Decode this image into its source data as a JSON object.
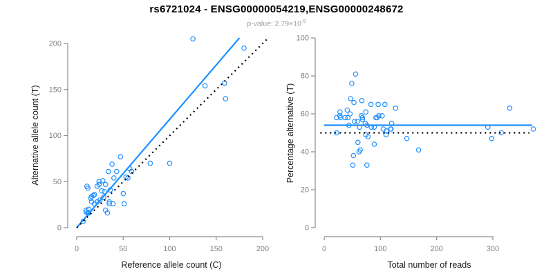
{
  "header": {
    "title": "rs6721024 - ENSG00000054219,ENSG00000248672",
    "pvalue_label": "p-value:",
    "pvalue_base": "2.79×10",
    "pvalue_exponent": "-9"
  },
  "colors": {
    "accent_blue": "#1E90FF",
    "line_black": "#000000",
    "axis_gray": "#8c8c8c",
    "tick_label_gray": "#808080",
    "subtitle_gray": "#999999",
    "title_black": "#000000"
  },
  "chart_data": [
    {
      "type": "scatter",
      "name": "allele-counts-panel",
      "xlabel": "Reference allele count (C)",
      "ylabel": "Alternative allele count (T)",
      "xticks": [
        0,
        50,
        100,
        150,
        200
      ],
      "yticks": [
        0,
        50,
        100,
        150,
        200
      ],
      "xlim": [
        0,
        205
      ],
      "ylim": [
        0,
        207
      ],
      "grid": false,
      "legend": "none",
      "points": [
        [
          7,
          7
        ],
        [
          10,
          17
        ],
        [
          10,
          19
        ],
        [
          11,
          45
        ],
        [
          12,
          16
        ],
        [
          12,
          43
        ],
        [
          13,
          16
        ],
        [
          13,
          20
        ],
        [
          15,
          32
        ],
        [
          16,
          28
        ],
        [
          16,
          34
        ],
        [
          18,
          35
        ],
        [
          19,
          26
        ],
        [
          19,
          36
        ],
        [
          22,
          28
        ],
        [
          22,
          45
        ],
        [
          24,
          47
        ],
        [
          24,
          50
        ],
        [
          25,
          30
        ],
        [
          27,
          40
        ],
        [
          28,
          51
        ],
        [
          29,
          33
        ],
        [
          30,
          39
        ],
        [
          31,
          19
        ],
        [
          31,
          47
        ],
        [
          33,
          16
        ],
        [
          34,
          61
        ],
        [
          35,
          26
        ],
        [
          35,
          28
        ],
        [
          36,
          41
        ],
        [
          38,
          69
        ],
        [
          39,
          26
        ],
        [
          40,
          54
        ],
        [
          43,
          61
        ],
        [
          47,
          77
        ],
        [
          50,
          37
        ],
        [
          51,
          26
        ],
        [
          53,
          55
        ],
        [
          55,
          54
        ],
        [
          57,
          64
        ],
        [
          59,
          61
        ],
        [
          79,
          70
        ],
        [
          100,
          70
        ],
        [
          125,
          205
        ],
        [
          138,
          154
        ],
        [
          159,
          157
        ],
        [
          160,
          140
        ],
        [
          180,
          195
        ]
      ],
      "lines": [
        {
          "name": "regression-line",
          "style": "solid",
          "color": "#1E90FF",
          "from": [
            0,
            0
          ],
          "to": [
            175,
            206
          ]
        },
        {
          "name": "identity-line",
          "style": "dotted",
          "color": "#000000",
          "from": [
            0,
            0
          ],
          "to": [
            206,
            206
          ]
        }
      ]
    },
    {
      "type": "scatter",
      "name": "percentage-panel",
      "xlabel": "Total number of reads",
      "ylabel": "Percentage alternative (T)",
      "xticks": [
        0,
        100,
        200,
        300
      ],
      "yticks": [
        0,
        20,
        40,
        60,
        80,
        100
      ],
      "xlim": [
        0,
        375
      ],
      "ylim": [
        0,
        100
      ],
      "grid": false,
      "legend": "none",
      "points": [
        [
          22,
          50
        ],
        [
          22,
          58
        ],
        [
          28,
          59
        ],
        [
          28,
          61
        ],
        [
          29,
          58
        ],
        [
          37,
          58
        ],
        [
          41,
          62
        ],
        [
          42,
          58
        ],
        [
          44,
          54
        ],
        [
          46,
          60
        ],
        [
          47,
          68
        ],
        [
          49,
          76
        ],
        [
          51,
          33
        ],
        [
          52,
          38
        ],
        [
          53,
          66
        ],
        [
          54,
          56
        ],
        [
          56,
          81
        ],
        [
          59,
          56
        ],
        [
          60,
          45
        ],
        [
          62,
          40
        ],
        [
          63,
          53
        ],
        [
          64,
          41
        ],
        [
          66,
          59
        ],
        [
          67,
          67
        ],
        [
          68,
          57
        ],
        [
          68,
          58
        ],
        [
          73,
          55
        ],
        [
          74,
          49
        ],
        [
          74,
          61
        ],
        [
          76,
          33
        ],
        [
          76,
          54
        ],
        [
          78,
          48
        ],
        [
          83,
          65
        ],
        [
          84,
          53
        ],
        [
          89,
          44
        ],
        [
          89,
          53
        ],
        [
          92,
          58
        ],
        [
          94,
          58
        ],
        [
          96,
          65
        ],
        [
          97,
          59
        ],
        [
          103,
          59
        ],
        [
          105,
          52
        ],
        [
          108,
          65
        ],
        [
          110,
          49
        ],
        [
          111,
          51
        ],
        [
          118,
          52
        ],
        [
          119,
          52
        ],
        [
          120,
          55
        ],
        [
          127,
          63
        ],
        [
          147,
          47
        ],
        [
          168,
          41
        ],
        [
          291,
          53
        ],
        [
          298,
          47
        ],
        [
          315,
          50
        ],
        [
          330,
          63
        ],
        [
          372,
          52
        ]
      ],
      "lines": [
        {
          "name": "mean-percentage-line",
          "style": "solid",
          "color": "#1E90FF",
          "from": [
            0,
            54
          ],
          "to": [
            370,
            54
          ]
        },
        {
          "name": "fifty-percent-line",
          "style": "dotted",
          "color": "#000000",
          "from": [
            -7,
            50
          ],
          "to": [
            365,
            50
          ]
        }
      ]
    }
  ]
}
